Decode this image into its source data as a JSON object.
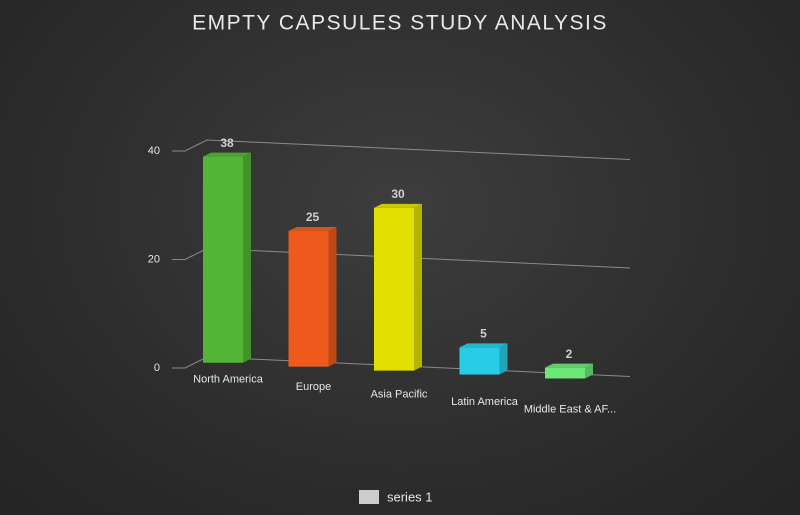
{
  "chart_data": {
    "type": "bar3d",
    "title": "EMPTY CAPSULES STUDY ANALYSIS",
    "categories": [
      "North America",
      "Europe",
      "Asia Pacific",
      "Latin America",
      "Middle East & AF..."
    ],
    "series": [
      {
        "name": "series 1",
        "color": "#cccccc",
        "values": [
          38,
          25,
          30,
          5,
          2
        ]
      }
    ],
    "bar_colors": [
      "#52b535",
      "#ee5a1c",
      "#e1e000",
      "#27cde6",
      "#6ce878"
    ],
    "ylim": [
      0,
      40
    ],
    "yticks": [
      0,
      20,
      40
    ],
    "grid": true,
    "legend": "bottom"
  }
}
